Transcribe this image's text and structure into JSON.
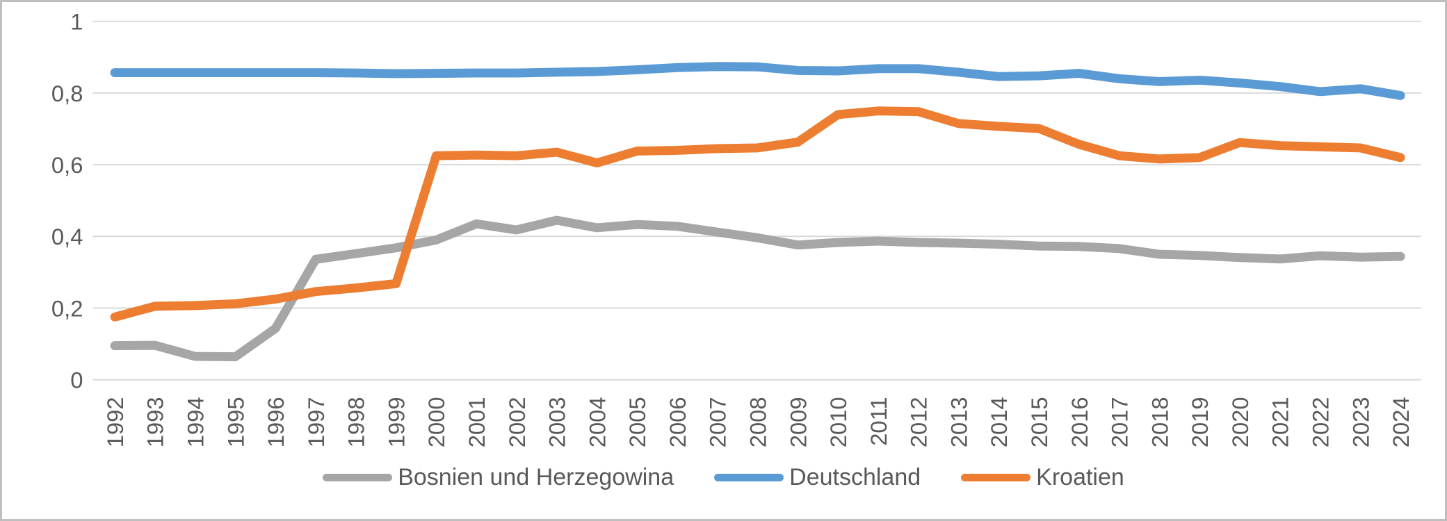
{
  "chart_data": {
    "type": "line",
    "title": "",
    "xlabel": "",
    "ylabel": "",
    "ylim": [
      0,
      1
    ],
    "grid": true,
    "legend_position": "bottom",
    "decimal_separator": ",",
    "x_labels": [
      "1992",
      "1993",
      "1994",
      "1995",
      "1996",
      "1997",
      "1998",
      "1999",
      "2000",
      "2001",
      "2002",
      "2003",
      "2004",
      "2005",
      "2006",
      "2007",
      "2008",
      "2009",
      "2010",
      "2011",
      "2012",
      "2013",
      "2014",
      "2015",
      "2016",
      "2017",
      "2018",
      "2019",
      "2020",
      "2021",
      "2022",
      "2023",
      "2024"
    ],
    "y_ticks": [
      {
        "value": 0,
        "label": "0"
      },
      {
        "value": 0.2,
        "label": "0,2"
      },
      {
        "value": 0.4,
        "label": "0,4"
      },
      {
        "value": 0.6,
        "label": "0,6"
      },
      {
        "value": 0.8,
        "label": "0,8"
      },
      {
        "value": 1,
        "label": "1"
      }
    ],
    "series": [
      {
        "name": "Bosnien und Herzegowina",
        "color": "#A6A6A6",
        "values": [
          0.095,
          0.096,
          0.065,
          0.064,
          0.143,
          0.336,
          0.352,
          0.368,
          0.39,
          0.435,
          0.418,
          0.445,
          0.424,
          0.433,
          0.428,
          0.412,
          0.396,
          0.376,
          0.383,
          0.387,
          0.383,
          0.381,
          0.378,
          0.373,
          0.372,
          0.366,
          0.35,
          0.347,
          0.341,
          0.337,
          0.346,
          0.342,
          0.344
        ]
      },
      {
        "name": "Deutschland",
        "color": "#5B9BD5",
        "values": [
          0.857,
          0.857,
          0.857,
          0.857,
          0.857,
          0.857,
          0.856,
          0.854,
          0.855,
          0.856,
          0.856,
          0.858,
          0.86,
          0.865,
          0.871,
          0.874,
          0.873,
          0.863,
          0.862,
          0.868,
          0.868,
          0.858,
          0.846,
          0.848,
          0.855,
          0.84,
          0.832,
          0.836,
          0.828,
          0.818,
          0.804,
          0.812,
          0.793
        ]
      },
      {
        "name": "Kroatien",
        "color": "#ED7D31",
        "values": [
          0.175,
          0.205,
          0.207,
          0.212,
          0.225,
          0.246,
          0.256,
          0.268,
          0.625,
          0.627,
          0.625,
          0.635,
          0.605,
          0.638,
          0.64,
          0.645,
          0.647,
          0.663,
          0.74,
          0.75,
          0.748,
          0.715,
          0.707,
          0.701,
          0.657,
          0.625,
          0.616,
          0.62,
          0.662,
          0.653,
          0.65,
          0.647,
          0.62
        ]
      }
    ],
    "colors": {
      "grid": "#D9D9D9",
      "tick_text": "#595959",
      "frame_border": "#BFBFBF",
      "background": "#FFFFFF"
    }
  }
}
